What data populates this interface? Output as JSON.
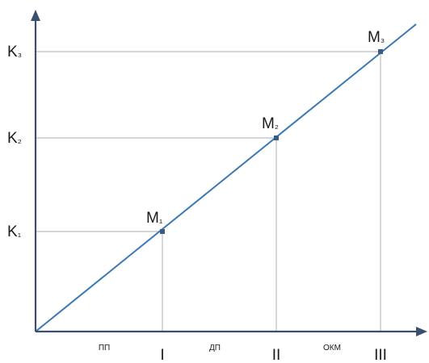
{
  "diagram": {
    "colors": {
      "axis": "#3d4f6e",
      "line": "#3a78b4",
      "guide": "#c8c8c8",
      "point": "#3b5b85",
      "text": "#1a1a1a"
    },
    "y_labels": [
      {
        "main": "K",
        "sub": "₁"
      },
      {
        "main": "K",
        "sub": "₂"
      },
      {
        "main": "K",
        "sub": "₃"
      }
    ],
    "x_labels": [
      "I",
      "II",
      "III"
    ],
    "segment_labels": [
      "ПП",
      "ДП",
      "ОКМ"
    ],
    "points": [
      {
        "main": "M",
        "sub": "₁"
      },
      {
        "main": "M",
        "sub": "₂"
      },
      {
        "main": "M",
        "sub": "₃"
      }
    ]
  }
}
